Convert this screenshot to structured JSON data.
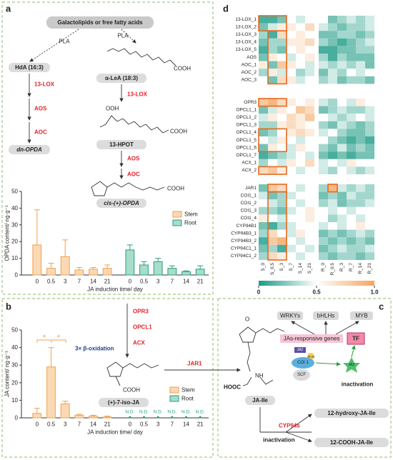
{
  "panel_a": {
    "label": "a",
    "source": "Galactolipids or free fatty acids",
    "pla_1": "PLA",
    "pla_2": "PLA",
    "hda": "HdA (16:3)",
    "lea": "α-LeA (18:3)",
    "lox_left": "13-LOX",
    "aos_left": "AOS",
    "aoc_left": "AOC",
    "dn_opda": "dn-OPDA",
    "lox_right": "13-LOX",
    "ooh": "OOH",
    "cooh_1": "COOH",
    "cooh_2": "COOH",
    "hpot": "13-HPOT",
    "aos_right": "AOS",
    "aoc_right": "AOC",
    "cooh_3": "COOH",
    "opda": "cis-(+)-OPDA"
  },
  "panel_b": {
    "label": "b",
    "opr3": "OPR3",
    "opcl1": "OPCL1",
    "acx": "ACX",
    "beta": "3× β-oxidation",
    "cooh": "COOH",
    "iso_ja": "(+)-7-iso-JA",
    "jar1": "JAR1"
  },
  "panel_c": {
    "label": "c",
    "wrkys": "WRKYs",
    "bhlhs": "bHLHs",
    "myb": "MYB",
    "genes": "JAs-responsive genes",
    "tf": "TF",
    "jaz_1": "JAZ",
    "ja_ile_small": "JA-Ile",
    "coi1": "COI 1",
    "scf": "SCF",
    "jaz_2": "JAZ",
    "inactivation_1": "inactivation",
    "o": "O",
    "hooc": "HOOC",
    "nh": "NH",
    "ja_ile": "JA-Ile",
    "cyp94s": "CYP94s",
    "inactivation_2": "inactivation",
    "hydroxy": "12-hydroxy-JA-Ile",
    "cooh_ja": "12-COOH-JA-Ile"
  },
  "panel_d": {
    "label": "d"
  },
  "chart_data": [
    {
      "type": "bar",
      "y_label": "OPDA content/ ng·g⁻¹",
      "x_label": "JA induction time/ day",
      "categories": [
        "0",
        "0.5",
        "3",
        "7",
        "14",
        "21"
      ],
      "series": [
        {
          "name": "Stem",
          "color": "#f0a050",
          "fill": "#fbd9b4",
          "values": [
            18,
            4,
            11,
            3,
            3.5,
            4
          ],
          "errors": [
            21,
            3,
            10,
            1.5,
            1,
            2
          ]
        },
        {
          "name": "Root",
          "color": "#2a9d7f",
          "fill": "#a8dccb",
          "values": [
            15,
            6,
            8,
            4,
            2,
            3.5
          ],
          "errors": [
            3,
            2,
            2,
            1.5,
            0.5,
            2
          ]
        }
      ],
      "ylim": [
        0,
        50
      ],
      "yticks": [
        0,
        10,
        20,
        30,
        40,
        50
      ]
    },
    {
      "type": "bar",
      "y_label": "JA content/ ng·g⁻¹",
      "x_label": "JA induction time/ day",
      "categories": [
        "0",
        "0.5",
        "3",
        "7",
        "14",
        "21"
      ],
      "series": [
        {
          "name": "Stem",
          "color": "#f0a050",
          "fill": "#fbd9b4",
          "values": [
            2.5,
            29,
            8,
            1.5,
            1,
            0.5
          ],
          "errors": [
            3,
            11,
            1.5,
            0.5,
            0.5,
            0.5
          ]
        },
        {
          "name": "Root",
          "color": "#2a9d7f",
          "fill": "#a8dccb",
          "values": [
            null,
            null,
            null,
            null,
            null,
            null
          ],
          "value_labels": [
            "N.D.",
            "N.D.",
            "N.D.",
            "N.D.",
            "N.D.",
            "N.D."
          ]
        }
      ],
      "annotations": [
        "*",
        "*"
      ],
      "ylim": [
        0,
        50
      ],
      "yticks": [
        0,
        10,
        20,
        30,
        40,
        50
      ]
    },
    {
      "type": "heatmap",
      "columns": [
        "S_0",
        "S_0.5",
        "S_3",
        "S_7",
        "S_14",
        "S_21",
        "R_0",
        "R_0.5",
        "R_3",
        "R_7",
        "R_14",
        "R_21"
      ],
      "rows": [
        "13-LOX_1",
        "13-LOX_2",
        "13-LOX_3",
        "13-LOX_4",
        "13-LOX_5",
        "AOS",
        "AOC_1",
        "AOC_2",
        "AOC_3",
        "OPR3",
        "OPCL1_1",
        "OPCL1_2",
        "OPCL1_3",
        "OPCL1_4",
        "OPCL1_5",
        "OPCL1_6",
        "OPCL1_7",
        "ACX_1",
        "ACX_2",
        "JAR1",
        "COI1_1",
        "COI1_2",
        "COI1_3",
        "COI1_4",
        "CYP94B1",
        "CYP94B3_1",
        "CYP94B3_2",
        "CYP94C1_1",
        "CYP94C1_2"
      ],
      "values": [
        [
          0.1,
          0.1,
          0.2,
          0.5,
          0.4,
          0.5,
          0.5,
          0.2,
          0.3,
          0.4,
          0.3,
          0.4
        ],
        [
          0.2,
          0.4,
          0.6,
          0.6,
          0.5,
          0.7,
          0.4,
          0.3,
          0.2,
          0.3,
          0.3,
          0.4
        ],
        [
          0.3,
          0.1,
          0.7,
          0.5,
          0.6,
          0.5,
          0.2,
          0.2,
          0.3,
          0.3,
          0.2,
          0.3
        ],
        [
          0.2,
          0.3,
          0.3,
          0.6,
          0.6,
          0.7,
          0.3,
          0.2,
          0.1,
          0.2,
          0.3,
          0.4
        ],
        [
          0.1,
          0.3,
          0.2,
          0.5,
          0.6,
          0.5,
          0.1,
          0.1,
          0.2,
          0.2,
          0.3,
          0.3
        ],
        [
          0.2,
          0.6,
          0.5,
          0.4,
          0.5,
          0.6,
          0.3,
          0.1,
          0.3,
          0.2,
          0.2,
          0.2
        ],
        [
          0.6,
          0.2,
          0.8,
          0.6,
          0.5,
          0.4,
          0.4,
          0.3,
          0.4,
          0.3,
          0.4,
          0.2
        ],
        [
          0.3,
          0.6,
          0.4,
          0.5,
          0.3,
          0.4,
          0.2,
          0.4,
          0.3,
          0.5,
          0.4,
          0.5
        ],
        [
          0.5,
          0.2,
          0.7,
          0.6,
          0.4,
          0.5,
          0.3,
          0.4,
          0.2,
          0.3,
          0.3,
          0.2
        ],
        [
          0.8,
          0.9,
          0.7,
          0.6,
          0.5,
          0.6,
          0.4,
          0.3,
          0.5,
          0.4,
          0.6,
          0.5
        ],
        [
          0.2,
          0.4,
          0.6,
          0.5,
          0.8,
          0.7,
          0.2,
          0.3,
          0.4,
          0.3,
          0.3,
          0.4
        ],
        [
          0.4,
          0.6,
          0.5,
          0.7,
          0.6,
          0.8,
          0.5,
          0.4,
          0.3,
          0.4,
          0.5,
          0.4
        ],
        [
          0.3,
          0.3,
          0.6,
          0.7,
          0.6,
          0.5,
          0.3,
          0.2,
          0.4,
          0.3,
          0.2,
          0.3
        ],
        [
          0.2,
          0.3,
          0.5,
          0.6,
          0.7,
          0.6,
          0.4,
          0.5,
          0.3,
          0.2,
          0.2,
          0.3
        ],
        [
          0.5,
          0.4,
          0.6,
          0.5,
          0.4,
          0.5,
          0.5,
          0.3,
          0.2,
          0.1,
          0.2,
          0.1
        ],
        [
          0.2,
          0.6,
          0.5,
          0.4,
          0.6,
          0.5,
          0.3,
          0.2,
          0.4,
          0.2,
          0.3,
          0.2
        ],
        [
          0.1,
          0.2,
          0.3,
          0.4,
          0.5,
          0.4,
          0.2,
          0.1,
          0.2,
          0.1,
          0.2,
          0.2
        ],
        [
          0.3,
          0.5,
          0.4,
          0.6,
          0.5,
          0.7,
          0.4,
          0.5,
          0.4,
          0.6,
          0.5,
          0.5
        ],
        [
          0.7,
          0.8,
          0.6,
          0.5,
          0.4,
          0.5,
          0.4,
          0.3,
          0.5,
          0.4,
          0.3,
          0.4
        ],
        [
          0.2,
          0.8,
          0.7,
          0.5,
          0.4,
          0.5,
          0.3,
          0.9,
          0.4,
          0.3,
          0.4,
          0.3
        ],
        [
          0.4,
          0.2,
          0.3,
          0.4,
          0.5,
          0.5,
          0.2,
          0.3,
          0.2,
          0.4,
          0.3,
          0.3
        ],
        [
          0.5,
          0.4,
          0.3,
          0.5,
          0.4,
          0.5,
          0.3,
          0.4,
          0.2,
          0.3,
          0.3,
          0.4
        ],
        [
          0.3,
          0.3,
          0.2,
          0.4,
          0.5,
          0.6,
          0.5,
          0.4,
          0.5,
          0.4,
          0.5,
          0.5
        ],
        [
          0.6,
          0.5,
          0.4,
          0.5,
          0.5,
          0.6,
          0.5,
          0.3,
          0.4,
          0.5,
          0.4,
          0.5
        ],
        [
          0.2,
          0.1,
          0.3,
          0.4,
          0.5,
          0.5,
          0.4,
          0.5,
          0.4,
          0.5,
          0.6,
          0.5
        ],
        [
          0.3,
          0.7,
          0.5,
          0.4,
          0.6,
          0.5,
          0.2,
          0.3,
          0.2,
          0.3,
          0.4,
          0.3
        ],
        [
          0.1,
          0.8,
          0.9,
          0.5,
          0.4,
          0.5,
          0.3,
          0.2,
          0.3,
          0.2,
          0.3,
          0.2
        ],
        [
          0.2,
          0.3,
          0.1,
          0.4,
          0.5,
          0.4,
          0.2,
          0.3,
          0.4,
          0.3,
          0.3,
          0.4
        ],
        [
          0.3,
          0.7,
          0.6,
          0.5,
          0.4,
          0.5,
          0.3,
          0.2,
          0.3,
          0.3,
          0.2,
          0.3
        ]
      ],
      "colors": [
        "#1a9a84",
        "#ffffff",
        "#f3a55e"
      ],
      "clim": [
        0,
        1
      ],
      "cticks": [
        0,
        0.5,
        {
          "value": 1,
          "label": "1.0"
        }
      ]
    }
  ]
}
